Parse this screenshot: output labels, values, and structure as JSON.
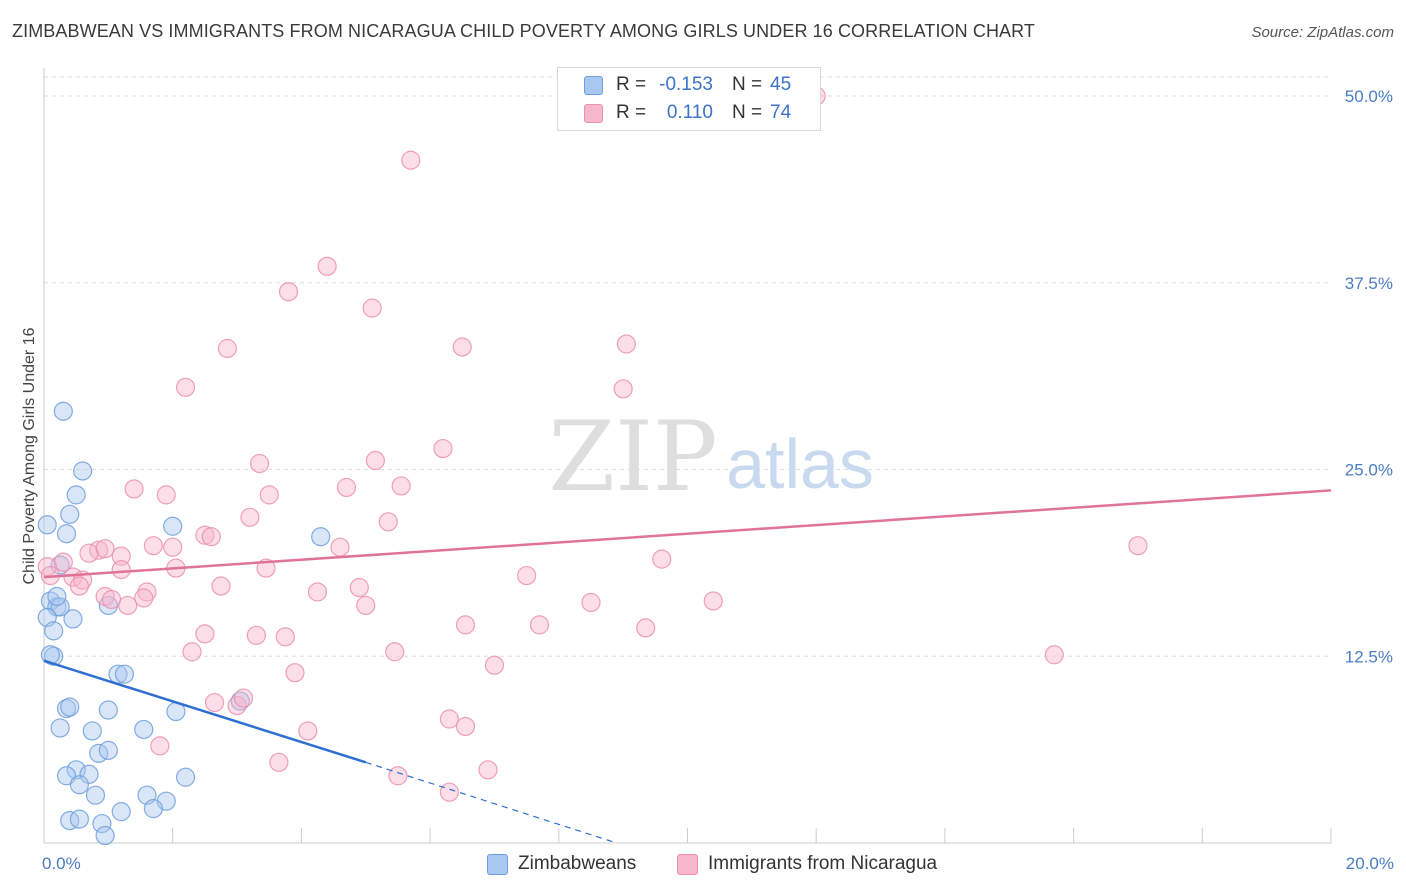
{
  "chart_title": "ZIMBABWEAN VS IMMIGRANTS FROM NICARAGUA CHILD POVERTY AMONG GIRLS UNDER 16 CORRELATION CHART",
  "source": "Source: ZipAtlas.com",
  "watermark": {
    "zip": "ZIP",
    "atlas": "atlas"
  },
  "legend": {
    "rows": [
      {
        "r_label": "R =",
        "r_value": "-0.153",
        "n_label": "N =",
        "n_value": "45"
      },
      {
        "r_label": "R =",
        "r_value": "0.110",
        "n_label": "N =",
        "n_value": "74"
      }
    ]
  },
  "bottom_legend": [
    "Zimbabweans",
    "Immigrants from Nicaragua"
  ],
  "colors": {
    "blue_fill": "#a9c8f0",
    "blue_stroke": "#6f9fdc",
    "blue_line": "#2f6fd1",
    "pink_fill": "#f6b6cb",
    "pink_stroke": "#ec8fae",
    "pink_line": "#e0739a",
    "tick_label": "#4a7cc4",
    "grid": "#dddddd"
  },
  "chart_data": {
    "type": "scatter",
    "title": "ZIMBABWEAN VS IMMIGRANTS FROM NICARAGUA CHILD POVERTY AMONG GIRLS UNDER 16 CORRELATION CHART",
    "xlabel": "",
    "ylabel": "Child Poverty Among Girls Under 16",
    "xlim": [
      0,
      20
    ],
    "ylim": [
      0,
      50
    ],
    "x_tick_labels": [
      {
        "value": 0,
        "label": "0.0%"
      },
      {
        "value": 20,
        "label": "20.0%"
      }
    ],
    "y_tick_labels": [
      {
        "value": 12.5,
        "label": "12.5%"
      },
      {
        "value": 25,
        "label": "25.0%"
      },
      {
        "value": 37.5,
        "label": "37.5%"
      },
      {
        "value": 50,
        "label": "50.0%"
      }
    ],
    "x_minor_ticks": [
      0,
      2,
      4,
      6,
      8,
      10,
      12,
      14,
      16,
      18,
      20
    ],
    "grid": true,
    "legend_position": "top-center",
    "series": [
      {
        "name": "Zimbabweans",
        "R": -0.153,
        "N": 45,
        "trend": {
          "x_start": 0,
          "y_start": 12.2,
          "x_solid_end": 5.0,
          "y_solid_end": 5.4,
          "x_dash_end": 8.9,
          "y_dash_end": 0.0
        },
        "points": [
          [
            0.05,
            21.3
          ],
          [
            0.3,
            28.9
          ],
          [
            0.6,
            24.9
          ],
          [
            0.5,
            23.3
          ],
          [
            0.4,
            22.0
          ],
          [
            0.35,
            20.7
          ],
          [
            2.0,
            21.2
          ],
          [
            4.3,
            20.5
          ],
          [
            0.25,
            18.6
          ],
          [
            0.1,
            16.2
          ],
          [
            0.2,
            15.8
          ],
          [
            0.25,
            15.8
          ],
          [
            0.05,
            15.1
          ],
          [
            0.45,
            15.0
          ],
          [
            0.15,
            14.2
          ],
          [
            0.15,
            12.5
          ],
          [
            1.0,
            15.9
          ],
          [
            1.15,
            11.3
          ],
          [
            1.25,
            11.3
          ],
          [
            0.35,
            9.0
          ],
          [
            0.4,
            9.1
          ],
          [
            1.0,
            8.9
          ],
          [
            2.05,
            8.8
          ],
          [
            0.25,
            7.7
          ],
          [
            0.75,
            7.5
          ],
          [
            1.55,
            7.6
          ],
          [
            3.05,
            9.5
          ],
          [
            0.85,
            6.0
          ],
          [
            1.0,
            6.2
          ],
          [
            0.5,
            4.9
          ],
          [
            0.7,
            4.6
          ],
          [
            0.35,
            4.5
          ],
          [
            0.55,
            3.9
          ],
          [
            2.2,
            4.4
          ],
          [
            0.8,
            3.2
          ],
          [
            1.6,
            3.2
          ],
          [
            1.9,
            2.8
          ],
          [
            1.2,
            2.1
          ],
          [
            1.7,
            2.3
          ],
          [
            0.4,
            1.5
          ],
          [
            0.55,
            1.6
          ],
          [
            0.9,
            1.3
          ],
          [
            0.95,
            0.5
          ],
          [
            0.1,
            12.6
          ],
          [
            0.2,
            16.5
          ]
        ]
      },
      {
        "name": "Immigrants from Nicaragua",
        "R": 0.11,
        "N": 74,
        "trend": {
          "x_start": 0,
          "y_start": 17.8,
          "x_end": 20,
          "y_end": 23.6
        },
        "points": [
          [
            12.0,
            50.0
          ],
          [
            5.7,
            45.7
          ],
          [
            4.4,
            38.6
          ],
          [
            3.8,
            36.9
          ],
          [
            5.1,
            35.8
          ],
          [
            2.85,
            33.1
          ],
          [
            6.5,
            33.2
          ],
          [
            9.05,
            33.4
          ],
          [
            2.2,
            30.5
          ],
          [
            9.0,
            30.4
          ],
          [
            6.2,
            26.4
          ],
          [
            3.35,
            25.4
          ],
          [
            5.15,
            25.6
          ],
          [
            1.4,
            23.7
          ],
          [
            1.9,
            23.3
          ],
          [
            3.5,
            23.3
          ],
          [
            4.7,
            23.8
          ],
          [
            5.55,
            23.9
          ],
          [
            3.2,
            21.8
          ],
          [
            5.35,
            21.5
          ],
          [
            2.5,
            20.6
          ],
          [
            2.6,
            20.5
          ],
          [
            1.7,
            19.9
          ],
          [
            2.0,
            19.8
          ],
          [
            4.6,
            19.8
          ],
          [
            1.2,
            19.2
          ],
          [
            0.85,
            19.6
          ],
          [
            0.7,
            19.4
          ],
          [
            0.95,
            19.7
          ],
          [
            9.6,
            19.0
          ],
          [
            17.0,
            19.9
          ],
          [
            0.3,
            18.8
          ],
          [
            0.05,
            18.5
          ],
          [
            0.1,
            17.9
          ],
          [
            0.45,
            17.8
          ],
          [
            0.6,
            17.6
          ],
          [
            0.55,
            17.2
          ],
          [
            2.05,
            18.4
          ],
          [
            3.45,
            18.4
          ],
          [
            1.2,
            18.3
          ],
          [
            7.5,
            17.9
          ],
          [
            2.75,
            17.2
          ],
          [
            4.9,
            17.1
          ],
          [
            1.6,
            16.8
          ],
          [
            1.55,
            16.4
          ],
          [
            0.95,
            16.5
          ],
          [
            4.25,
            16.8
          ],
          [
            1.05,
            16.3
          ],
          [
            1.3,
            15.9
          ],
          [
            5.0,
            15.9
          ],
          [
            8.5,
            16.1
          ],
          [
            10.4,
            16.2
          ],
          [
            6.55,
            14.6
          ],
          [
            7.7,
            14.6
          ],
          [
            9.35,
            14.4
          ],
          [
            2.5,
            14.0
          ],
          [
            3.3,
            13.9
          ],
          [
            3.75,
            13.8
          ],
          [
            2.3,
            12.8
          ],
          [
            5.45,
            12.8
          ],
          [
            15.7,
            12.6
          ],
          [
            7.0,
            11.9
          ],
          [
            3.9,
            11.4
          ],
          [
            2.65,
            9.4
          ],
          [
            3.0,
            9.2
          ],
          [
            3.1,
            9.7
          ],
          [
            6.3,
            8.3
          ],
          [
            6.55,
            7.8
          ],
          [
            4.1,
            7.5
          ],
          [
            1.8,
            6.5
          ],
          [
            3.65,
            5.4
          ],
          [
            6.9,
            4.9
          ],
          [
            5.5,
            4.5
          ],
          [
            6.3,
            3.4
          ]
        ]
      }
    ]
  }
}
